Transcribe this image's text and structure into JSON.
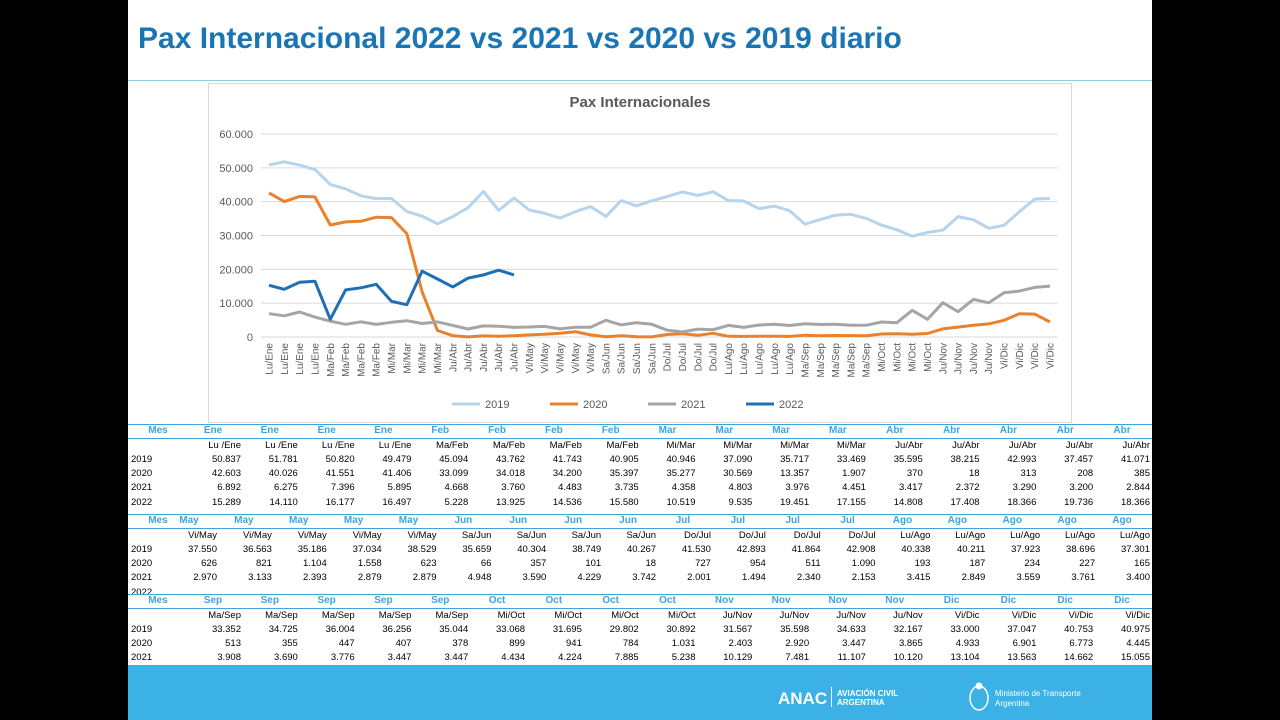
{
  "header": {
    "title": "Pax Internacional 2022 vs 2021 vs 2020 vs 2019 diario"
  },
  "chart_data": {
    "type": "line",
    "title": "Pax Internacionales",
    "grid": true,
    "legend": "bottom",
    "categories": [
      "Lu/Ene",
      "Lu/Ene",
      "Lu/Ene",
      "Lu/Ene",
      "Ma/Feb",
      "Ma/Feb",
      "Ma/Feb",
      "Ma/Feb",
      "Mi/Mar",
      "Mi/Mar",
      "Mi/Mar",
      "Mi/Mar",
      "Ju/Abr",
      "Ju/Abr",
      "Ju/Abr",
      "Ju/Abr",
      "Ju/Abr",
      "Vi/May",
      "Vi/May",
      "Vi/May",
      "Vi/May",
      "Vi/May",
      "Sa/Jun",
      "Sa/Jun",
      "Sa/Jun",
      "Sa/Jun",
      "Do/Jul",
      "Do/Jul",
      "Do/Jul",
      "Do/Jul",
      "Lu/Ago",
      "Lu/Ago",
      "Lu/Ago",
      "Lu/Ago",
      "Lu/Ago",
      "Ma/Sep",
      "Ma/Sep",
      "Ma/Sep",
      "Ma/Sep",
      "Ma/Sep",
      "Mi/Oct",
      "Mi/Oct",
      "Mi/Oct",
      "Mi/Oct",
      "Ju/Nov",
      "Ju/Nov",
      "Ju/Nov",
      "Ju/Nov",
      "Vi/Dic",
      "Vi/Dic",
      "Vi/Dic",
      "Vi/Dic"
    ],
    "ylim": [
      0,
      60000
    ],
    "yticks": [
      0,
      {
        "value": 10000,
        "label": "10.000"
      },
      {
        "value": 20000,
        "label": "20.000"
      },
      {
        "value": 30000,
        "label": "30.000"
      },
      {
        "value": 40000,
        "label": "40.000"
      },
      {
        "value": 50000,
        "label": "50.000"
      },
      {
        "value": 60000,
        "label": "60.000"
      }
    ],
    "series": [
      {
        "name": "2019",
        "color": "#b7d4ec",
        "values": [
          50837,
          51781,
          50820,
          49479,
          45094,
          43762,
          41743,
          40905,
          40946,
          37090,
          35717,
          33469,
          35595,
          38215,
          42993,
          37457,
          41071,
          37550,
          36563,
          35186,
          37034,
          38529,
          35659,
          40304,
          38749,
          40267,
          41530,
          42893,
          41864,
          42908,
          40338,
          40211,
          37923,
          38696,
          37301,
          33352,
          34725,
          36004,
          36256,
          35044,
          33068,
          31695,
          29802,
          30892,
          31567,
          35598,
          34633,
          32167,
          33000,
          37047,
          40753,
          40975
        ]
      },
      {
        "name": "2020",
        "color": "#e8822f",
        "values": [
          42603,
          40026,
          41551,
          41406,
          33099,
          34018,
          34200,
          35397,
          35277,
          30569,
          13357,
          1907,
          370,
          18,
          313,
          208,
          385,
          626,
          821,
          1104,
          1558,
          623,
          66,
          357,
          101,
          18,
          727,
          954,
          511,
          1090,
          193,
          187,
          234,
          227,
          165,
          513,
          355,
          447,
          407,
          378,
          899,
          941,
          784,
          1031,
          2403,
          2920,
          3447,
          3865,
          4933,
          6901,
          6773,
          4445
        ]
      },
      {
        "name": "2021",
        "color": "#a5a5a5",
        "values": [
          6892,
          6275,
          7396,
          5895,
          4668,
          3760,
          4483,
          3735,
          4358,
          4803,
          3976,
          4451,
          3417,
          2372,
          3290,
          3200,
          2844,
          2970,
          3133,
          2393,
          2879,
          2879,
          4948,
          3590,
          4229,
          3742,
          2001,
          1494,
          2340,
          2153,
          3415,
          2849,
          3559,
          3761,
          3400,
          3908,
          3690,
          3776,
          3447,
          3447,
          4434,
          4224,
          7885,
          5238,
          10129,
          7481,
          11107,
          10120,
          13104,
          13563,
          14662,
          15055
        ]
      },
      {
        "name": "2022",
        "color": "#1f6fb5",
        "values": [
          15289,
          14110,
          16177,
          16497,
          5228,
          13925,
          14536,
          15580,
          10519,
          9535,
          19451,
          17155,
          14808,
          17408,
          18366,
          19736,
          18366,
          null,
          null,
          null,
          null,
          null,
          null,
          null,
          null,
          null,
          null,
          null,
          null,
          null,
          null,
          null,
          null,
          null,
          null,
          null,
          null,
          null,
          null,
          null,
          null,
          null,
          null,
          null,
          null,
          null,
          null,
          null,
          null,
          null,
          null,
          null
        ]
      }
    ]
  },
  "tables": [
    {
      "header": [
        "Mes",
        "Ene",
        "Ene",
        "Ene",
        "Ene",
        "Feb",
        "Feb",
        "Feb",
        "Feb",
        "Mar",
        "Mar",
        "Mar",
        "Mar",
        "Abr",
        "Abr",
        "Abr",
        "Abr",
        "Abr"
      ],
      "sub": [
        "Lu /Ene",
        "Lu /Ene",
        "Lu /Ene",
        "Lu /Ene",
        "Ma/Feb",
        "Ma/Feb",
        "Ma/Feb",
        "Ma/Feb",
        "Mi/Mar",
        "Mi/Mar",
        "Mi/Mar",
        "Mi/Mar",
        "Ju/Abr",
        "Ju/Abr",
        "Ju/Abr",
        "Ju/Abr",
        "Ju/Abr"
      ],
      "rows": [
        {
          "year": "2019",
          "cells": [
            "50.837",
            "51.781",
            "50.820",
            "49.479",
            "45.094",
            "43.762",
            "41.743",
            "40.905",
            "40.946",
            "37.090",
            "35.717",
            "33.469",
            "35.595",
            "38.215",
            "42.993",
            "37.457",
            "41.071"
          ]
        },
        {
          "year": "2020",
          "cells": [
            "42.603",
            "40.026",
            "41.551",
            "41.406",
            "33.099",
            "34.018",
            "34.200",
            "35.397",
            "35.277",
            "30.569",
            "13.357",
            "1.907",
            "370",
            "18",
            "313",
            "208",
            "385"
          ]
        },
        {
          "year": "2021",
          "cells": [
            "6.892",
            "6.275",
            "7.396",
            "5.895",
            "4.668",
            "3.760",
            "4.483",
            "3.735",
            "4.358",
            "4.803",
            "3.976",
            "4.451",
            "3.417",
            "2.372",
            "3.290",
            "3.200",
            "2.844"
          ]
        },
        {
          "year": "2022",
          "cells": [
            "15.289",
            "14.110",
            "16.177",
            "16.497",
            "5.228",
            "13.925",
            "14.536",
            "15.580",
            "10.519",
            "9.535",
            "19.451",
            "17.155",
            "14.808",
            "17.408",
            "18.366",
            "19.736",
            "18.366"
          ]
        }
      ]
    },
    {
      "header": [
        "Mes",
        "May",
        "May",
        "May",
        "May",
        "May",
        "Jun",
        "Jun",
        "Jun",
        "Jun",
        "Jul",
        "Jul",
        "Jul",
        "Jul",
        "Ago",
        "Ago",
        "Ago",
        "Ago",
        "Ago"
      ],
      "sub": [
        "Vi/May",
        "Vi/May",
        "Vi/May",
        "Vi/May",
        "Vi/May",
        "Sa/Jun",
        "Sa/Jun",
        "Sa/Jun",
        "Sa/Jun",
        "Do/Jul",
        "Do/Jul",
        "Do/Jul",
        "Do/Jul",
        "Lu/Ago",
        "Lu/Ago",
        "Lu/Ago",
        "Lu/Ago",
        "Lu/Ago"
      ],
      "rows": [
        {
          "year": "2019",
          "cells": [
            "37.550",
            "36.563",
            "35.186",
            "37.034",
            "38.529",
            "35.659",
            "40.304",
            "38.749",
            "40.267",
            "41.530",
            "42.893",
            "41.864",
            "42.908",
            "40.338",
            "40.211",
            "37.923",
            "38.696",
            "37.301"
          ]
        },
        {
          "year": "2020",
          "cells": [
            "626",
            "821",
            "1.104",
            "1.558",
            "623",
            "66",
            "357",
            "101",
            "18",
            "727",
            "954",
            "511",
            "1.090",
            "193",
            "187",
            "234",
            "227",
            "165"
          ]
        },
        {
          "year": "2021",
          "cells": [
            "2.970",
            "3.133",
            "2.393",
            "2.879",
            "2.879",
            "4.948",
            "3.590",
            "4.229",
            "3.742",
            "2.001",
            "1.494",
            "2.340",
            "2.153",
            "3.415",
            "2.849",
            "3.559",
            "3.761",
            "3.400"
          ]
        },
        {
          "year": "2022",
          "cells": []
        }
      ]
    },
    {
      "header": [
        "Mes",
        "Sep",
        "Sep",
        "Sep",
        "Sep",
        "Sep",
        "Oct",
        "Oct",
        "Oct",
        "Oct",
        "Nov",
        "Nov",
        "Nov",
        "Nov",
        "Dic",
        "Dic",
        "Dic",
        "Dic"
      ],
      "sub": [
        "Ma/Sep",
        "Ma/Sep",
        "Ma/Sep",
        "Ma/Sep",
        "Ma/Sep",
        "Mi/Oct",
        "Mi/Oct",
        "Mi/Oct",
        "Mi/Oct",
        "Ju/Nov",
        "Ju/Nov",
        "Ju/Nov",
        "Ju/Nov",
        "Vi/Dic",
        "Vi/Dic",
        "Vi/Dic",
        "Vi/Dic"
      ],
      "rows": [
        {
          "year": "2019",
          "cells": [
            "33.352",
            "34.725",
            "36.004",
            "36.256",
            "35.044",
            "33.068",
            "31.695",
            "29.802",
            "30.892",
            "31.567",
            "35.598",
            "34.633",
            "32.167",
            "33.000",
            "37.047",
            "40.753",
            "40.975"
          ]
        },
        {
          "year": "2020",
          "cells": [
            "513",
            "355",
            "447",
            "407",
            "378",
            "899",
            "941",
            "784",
            "1.031",
            "2.403",
            "2.920",
            "3.447",
            "3.865",
            "4.933",
            "6.901",
            "6.773",
            "4.445"
          ]
        },
        {
          "year": "2021",
          "cells": [
            "3.908",
            "3.690",
            "3.776",
            "3.447",
            "3.447",
            "4.434",
            "4.224",
            "7.885",
            "5.238",
            "10.129",
            "7.481",
            "11.107",
            "10.120",
            "13.104",
            "13.563",
            "14.662",
            "15.055"
          ]
        }
      ]
    }
  ],
  "footer": {
    "brand": "ANAC",
    "brand_line1": "AVIACIÓN CIVIL",
    "brand_line2": "ARGENTINA",
    "ministry": "Ministerio de Transporte",
    "country": "Argentina"
  }
}
